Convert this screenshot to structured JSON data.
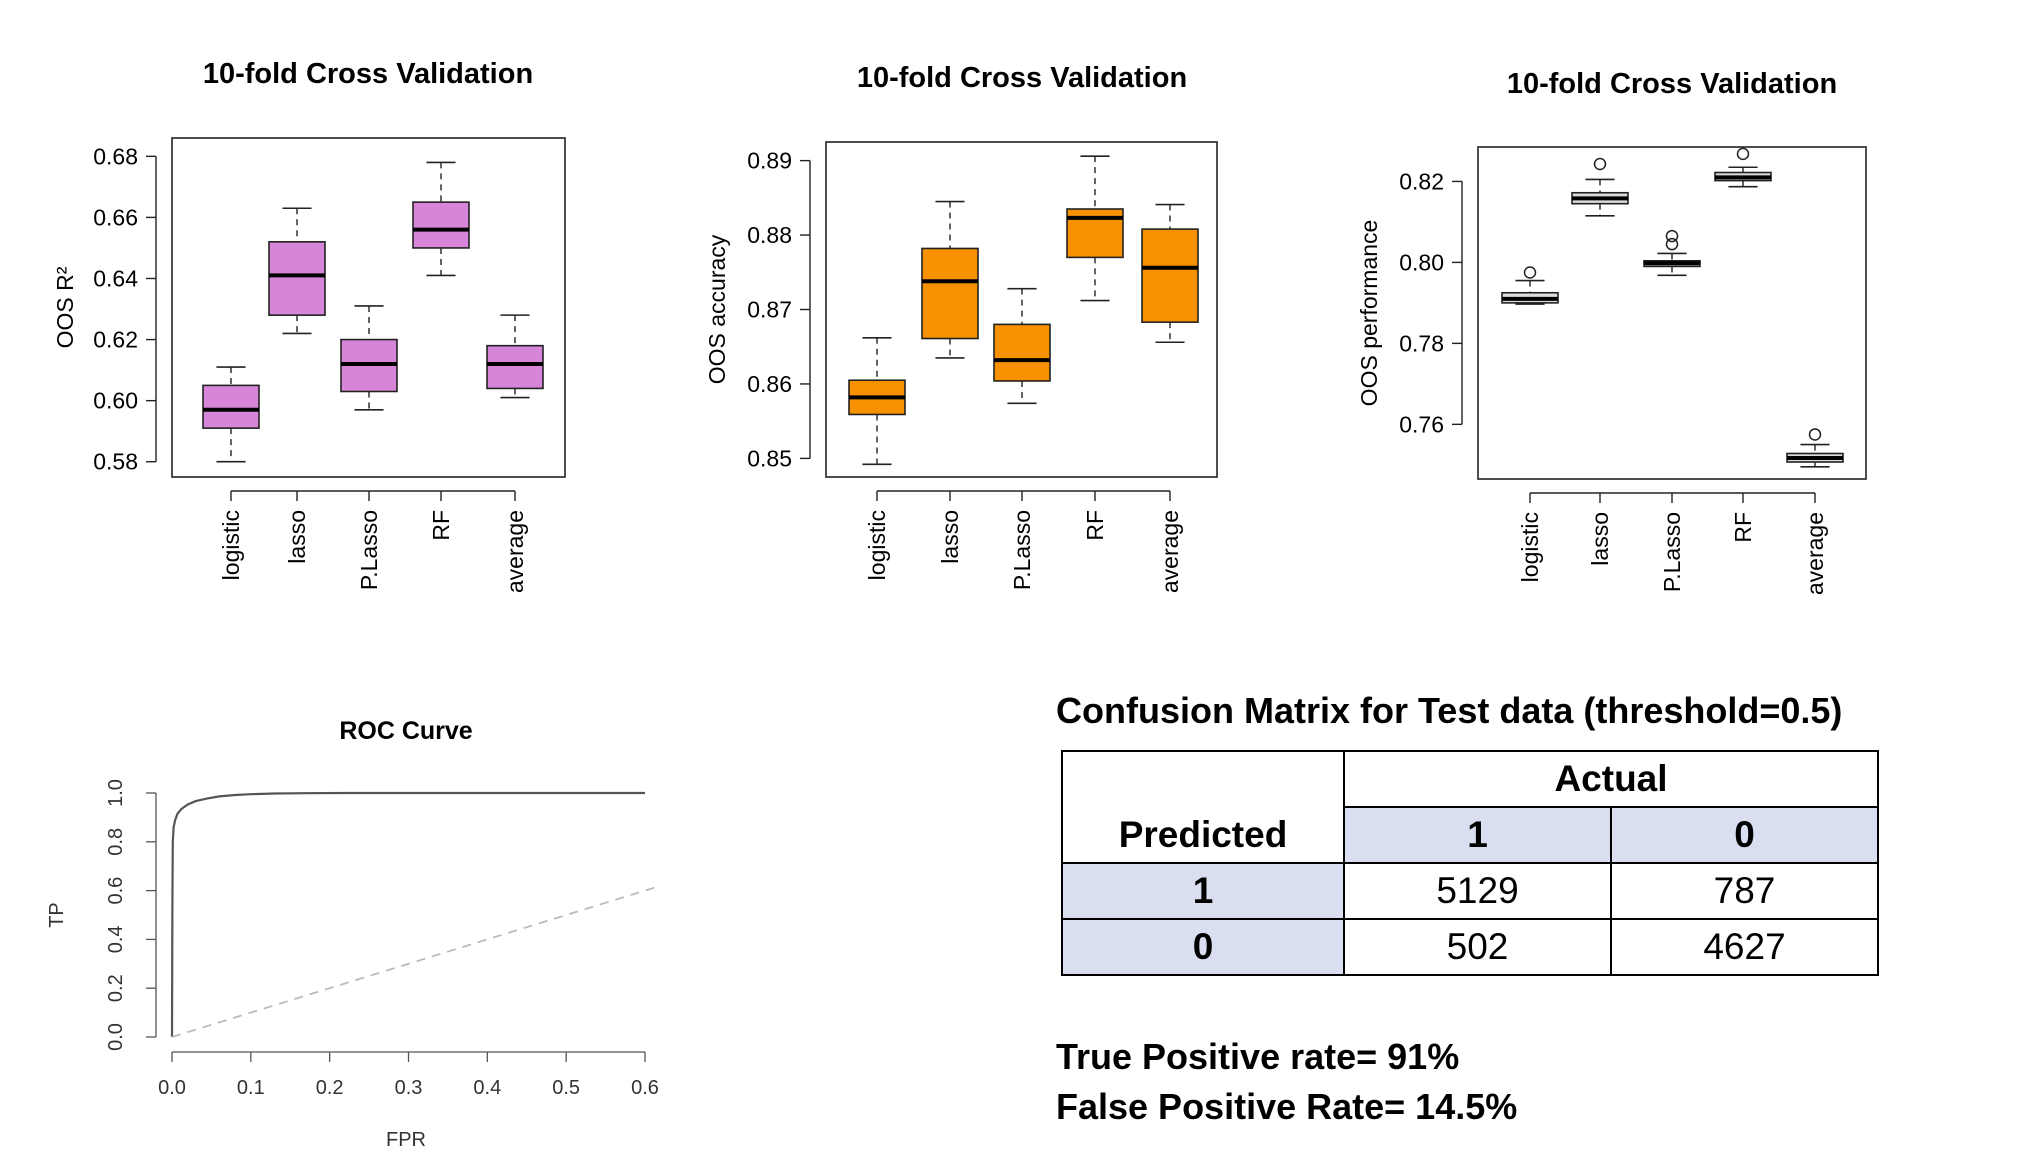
{
  "chart_data": [
    {
      "type": "box",
      "title": "10-fold Cross Validation",
      "ylabel": "OOS R²",
      "ylim": [
        0.575,
        0.686
      ],
      "yticks": [
        "0.58",
        "0.60",
        "0.62",
        "0.64",
        "0.66",
        "0.68"
      ],
      "categories": [
        "logistic",
        "lasso",
        "P.Lasso",
        "RF",
        "average"
      ],
      "fill": "#d785d8",
      "boxes": [
        {
          "min": 0.58,
          "q1": 0.591,
          "median": 0.597,
          "q3": 0.605,
          "max": 0.611,
          "outliers": []
        },
        {
          "min": 0.622,
          "q1": 0.628,
          "median": 0.641,
          "q3": 0.652,
          "max": 0.663,
          "outliers": []
        },
        {
          "min": 0.597,
          "q1": 0.603,
          "median": 0.612,
          "q3": 0.62,
          "max": 0.631,
          "outliers": []
        },
        {
          "min": 0.641,
          "q1": 0.65,
          "median": 0.656,
          "q3": 0.665,
          "max": 0.678,
          "outliers": []
        },
        {
          "min": 0.601,
          "q1": 0.604,
          "median": 0.612,
          "q3": 0.618,
          "max": 0.628,
          "outliers": []
        }
      ]
    },
    {
      "type": "box",
      "title": "10-fold Cross Validation",
      "ylabel": "OOS accuracy",
      "ylim": [
        0.8475,
        0.8925
      ],
      "yticks": [
        "0.85",
        "0.86",
        "0.87",
        "0.88",
        "0.89"
      ],
      "categories": [
        "logistic",
        "lasso",
        "P.Lasso",
        "RF",
        "average"
      ],
      "fill": "#f79100",
      "boxes": [
        {
          "min": 0.8492,
          "q1": 0.8559,
          "median": 0.8582,
          "q3": 0.8605,
          "max": 0.8662,
          "outliers": []
        },
        {
          "min": 0.8635,
          "q1": 0.8661,
          "median": 0.8738,
          "q3": 0.8782,
          "max": 0.8845,
          "outliers": []
        },
        {
          "min": 0.8574,
          "q1": 0.8604,
          "median": 0.8632,
          "q3": 0.868,
          "max": 0.8728,
          "outliers": []
        },
        {
          "min": 0.8712,
          "q1": 0.877,
          "median": 0.8823,
          "q3": 0.8835,
          "max": 0.8906,
          "outliers": []
        },
        {
          "min": 0.8656,
          "q1": 0.8683,
          "median": 0.8756,
          "q3": 0.8808,
          "max": 0.8841,
          "outliers": []
        }
      ]
    },
    {
      "type": "box",
      "title": "10-fold Cross Validation",
      "ylabel": "OOS performance",
      "ylim": [
        0.7465,
        0.8285
      ],
      "yticks": [
        "0.76",
        "0.78",
        "0.80",
        "0.82"
      ],
      "categories": [
        "logistic",
        "lasso",
        "P.Lasso",
        "RF",
        "average"
      ],
      "fill": "#dcdcdc",
      "boxes": [
        {
          "min": 0.7897,
          "q1": 0.79,
          "median": 0.791,
          "q3": 0.7925,
          "max": 0.7955,
          "outliers": [
            0.7975
          ]
        },
        {
          "min": 0.8115,
          "q1": 0.8145,
          "median": 0.8158,
          "q3": 0.8172,
          "max": 0.8205,
          "outliers": [
            0.8243
          ]
        },
        {
          "min": 0.7968,
          "q1": 0.799,
          "median": 0.7998,
          "q3": 0.8004,
          "max": 0.8022,
          "outliers": [
            0.8045,
            0.8065
          ]
        },
        {
          "min": 0.8187,
          "q1": 0.8202,
          "median": 0.821,
          "q3": 0.8222,
          "max": 0.8235,
          "outliers": [
            0.8268
          ]
        },
        {
          "min": 0.7495,
          "q1": 0.7507,
          "median": 0.7517,
          "q3": 0.7528,
          "max": 0.755,
          "outliers": [
            0.7575
          ]
        }
      ]
    },
    {
      "type": "line",
      "title": "ROC Curve",
      "xlabel": "FPR",
      "ylabel": "TP",
      "xlim": [
        -0.01,
        0.6
      ],
      "ylim": [
        -0.01,
        1.0
      ],
      "xticks": [
        "0.0",
        "0.1",
        "0.2",
        "0.3",
        "0.4",
        "0.5",
        "0.6"
      ],
      "yticks": [
        "0.0",
        "0.2",
        "0.4",
        "0.6",
        "0.8",
        "1.0"
      ],
      "series": [
        {
          "style": "solid",
          "x": [
            0,
            0.0005,
            0.001,
            0.002,
            0.004,
            0.007,
            0.012,
            0.02,
            0.03,
            0.045,
            0.06,
            0.08,
            0.1,
            0.13,
            0.17,
            0.22,
            0.3,
            0.4,
            0.5,
            0.6
          ],
          "y": [
            0,
            0.55,
            0.8,
            0.86,
            0.89,
            0.915,
            0.935,
            0.953,
            0.967,
            0.978,
            0.986,
            0.992,
            0.995,
            0.998,
            0.999,
            1.0,
            1.0,
            1.0,
            1.0,
            1.0
          ]
        },
        {
          "style": "dashed",
          "x": [
            0,
            0.62
          ],
          "y": [
            0,
            0.62
          ]
        }
      ]
    },
    {
      "type": "table",
      "title": "Confusion Matrix for Test data (threshold=0.5)",
      "col_header": "Actual",
      "row_header": "Predicted",
      "columns": [
        "1",
        "0"
      ],
      "rows": [
        {
          "label": "1",
          "values": [
            "5129",
            "787"
          ]
        },
        {
          "label": "0",
          "values": [
            "502",
            "4627"
          ]
        }
      ]
    }
  ],
  "rates": {
    "tpr": "True Positive rate= 91%",
    "fpr": "False Positive Rate= 14.5%"
  }
}
